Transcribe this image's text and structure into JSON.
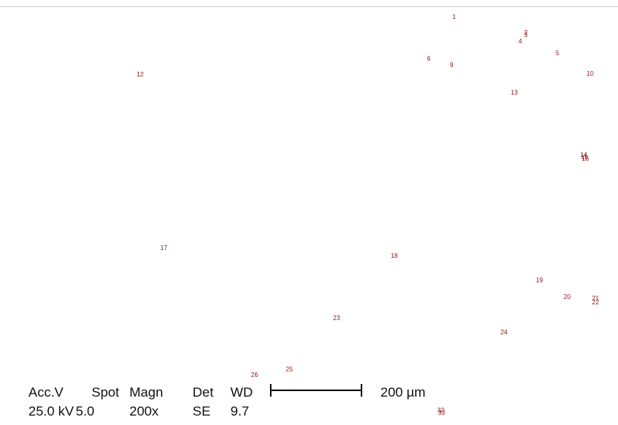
{
  "points": [
    "1",
    "2",
    "3",
    "4",
    "5",
    "6",
    "9",
    "10",
    "12",
    "13",
    "14",
    "15",
    "16",
    "17",
    "18",
    "19",
    "20",
    "21",
    "22",
    "23",
    "24",
    "25",
    "26",
    "32",
    "33"
  ],
  "info": {
    "headers": [
      "Acc.V",
      "Spot",
      "Magn",
      "Det",
      "WD"
    ],
    "values": [
      "25.0 kV",
      "5.0",
      "200x",
      "SE",
      "9.7"
    ],
    "scale": "200 µm"
  }
}
